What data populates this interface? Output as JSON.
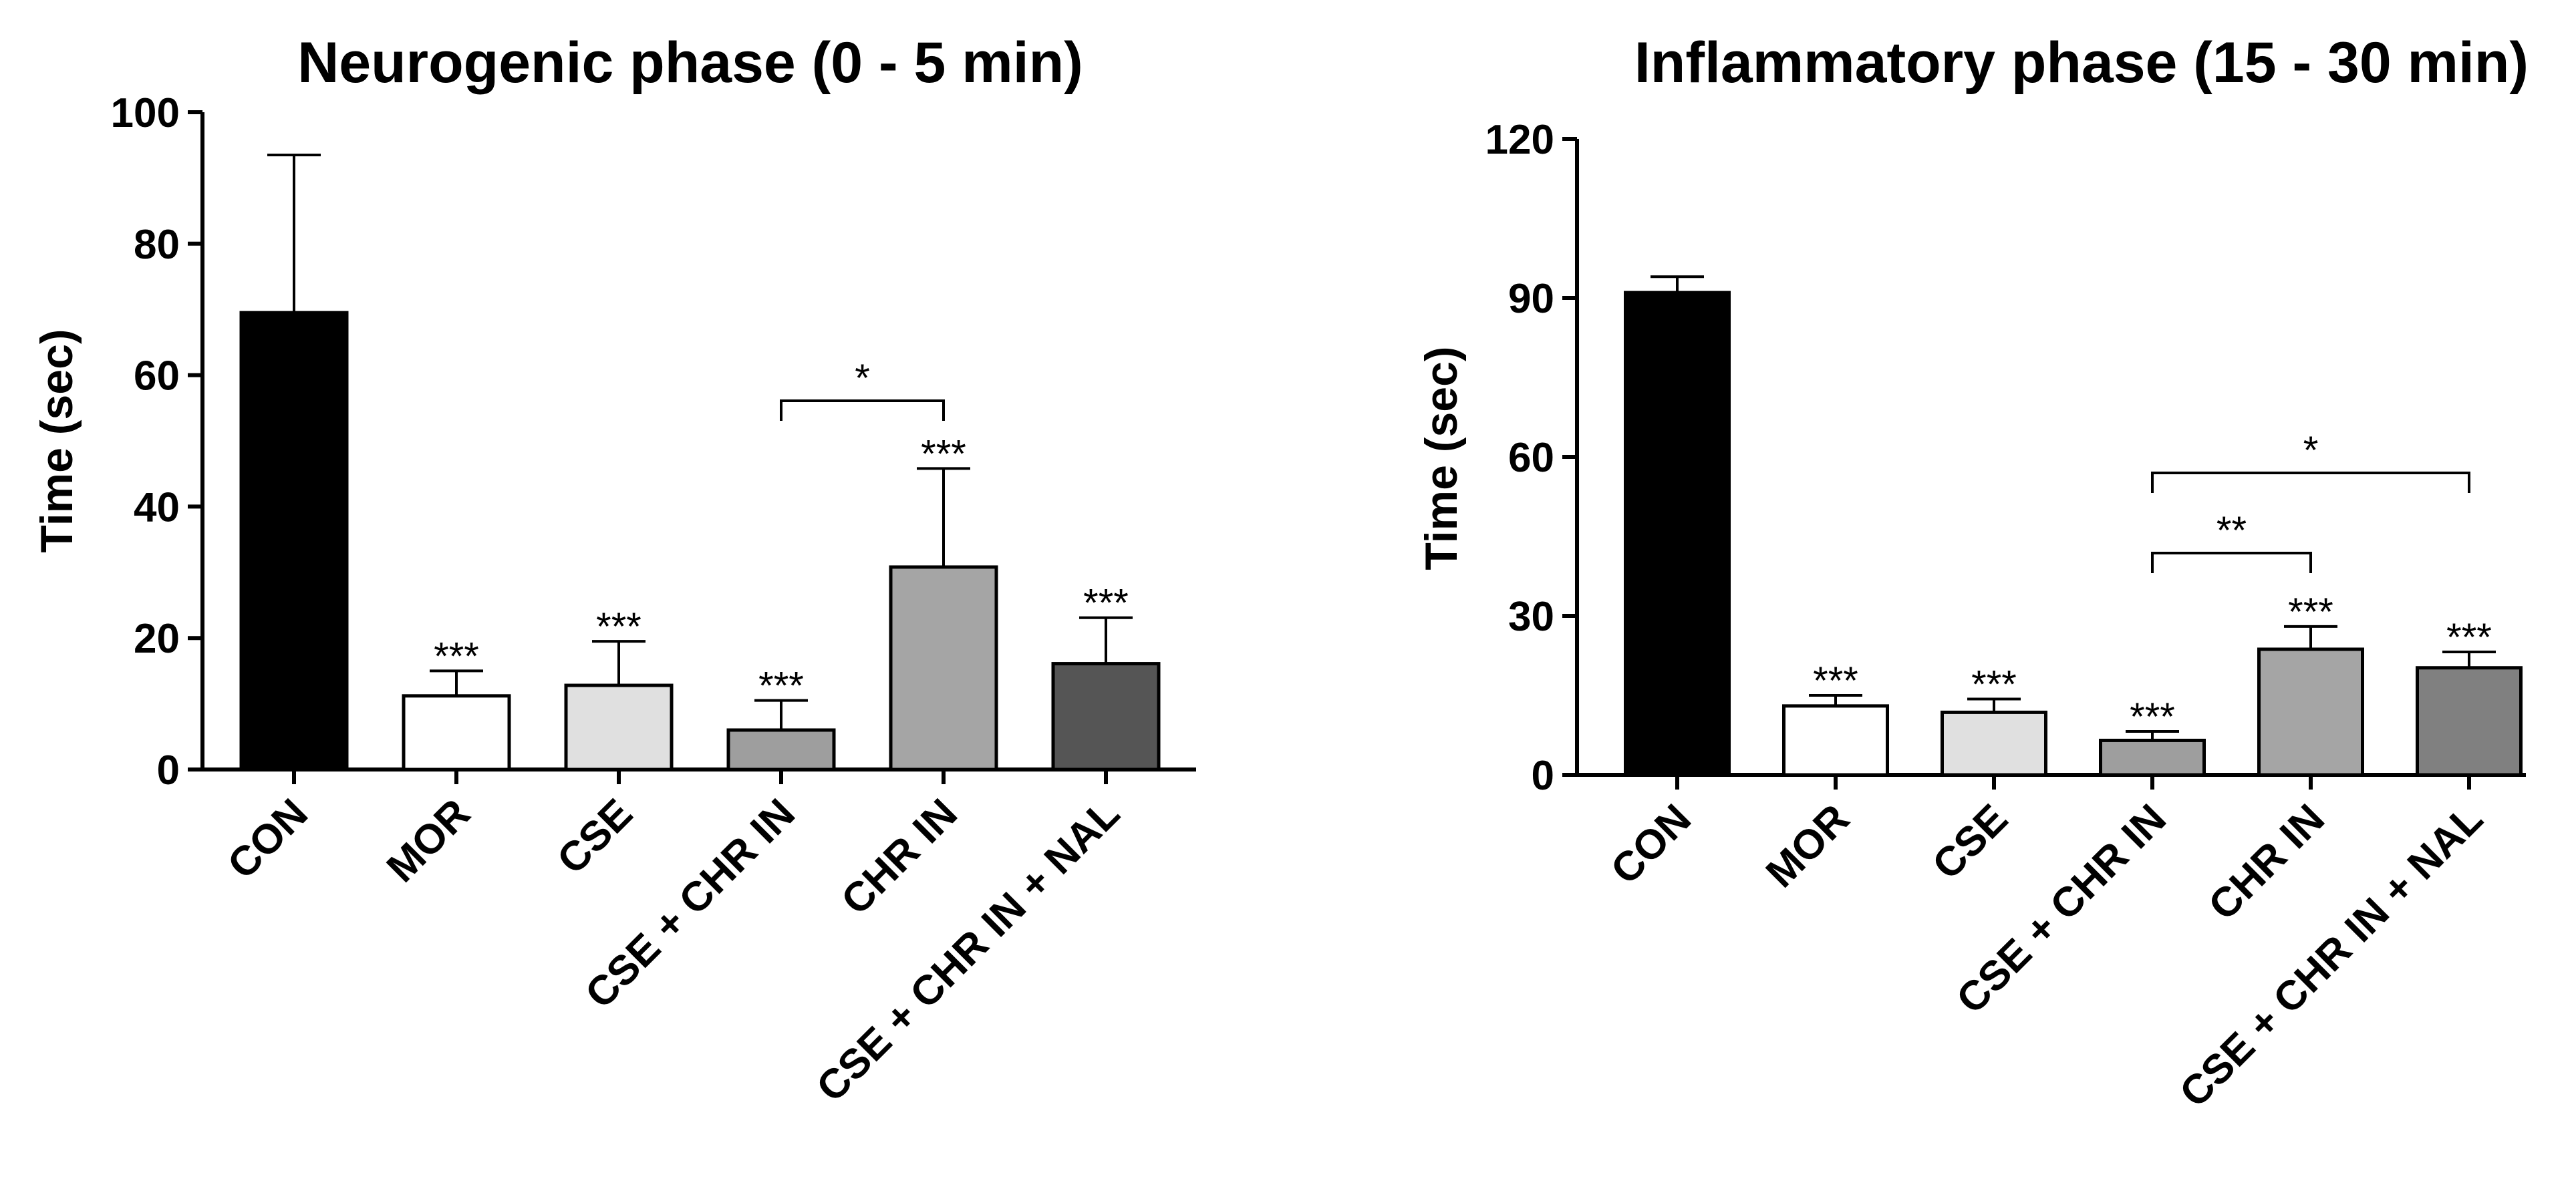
{
  "chart_data": [
    {
      "type": "bar",
      "title": "Neurogenic phase (0 - 5 min)",
      "ylabel": "Time  (sec)",
      "xlabel": "",
      "ylim": [
        0,
        100
      ],
      "yticks": [
        0,
        20,
        40,
        60,
        80,
        100
      ],
      "categories": [
        "CON",
        "MOR",
        "CSE",
        "CSE + CHR IN",
        "CHR IN",
        "CSE + CHR IN + NAL"
      ],
      "values": [
        69.5,
        11.2,
        12.8,
        6.0,
        30.8,
        16.1
      ],
      "errors": [
        24.0,
        3.8,
        6.7,
        4.5,
        15.0,
        7.0
      ],
      "colors": [
        "#000000",
        "#ffffff",
        "#e0e0e0",
        "#9e9e9e",
        "#a5a5a5",
        "#555555"
      ],
      "significance": [
        "",
        "***",
        "***",
        "***",
        "***",
        "***"
      ],
      "brackets": [
        {
          "from": 3,
          "to": 4,
          "label": "*"
        }
      ]
    },
    {
      "type": "bar",
      "title": "Inflammatory phase (15 - 30 min)",
      "ylabel": "Time  (sec)",
      "xlabel": "",
      "ylim": [
        0,
        120
      ],
      "yticks": [
        0,
        30,
        60,
        90,
        120
      ],
      "categories": [
        "CON",
        "MOR",
        "CSE",
        "CSE + CHR IN",
        "CHR IN",
        "CSE + CHR IN + NAL"
      ],
      "values": [
        91.0,
        13.0,
        11.8,
        6.5,
        23.7,
        20.2
      ],
      "errors": [
        3.0,
        2.0,
        2.5,
        1.7,
        4.3,
        3.0
      ],
      "colors": [
        "#000000",
        "#ffffff",
        "#e0e0e0",
        "#9e9e9e",
        "#a5a5a5",
        "#808080"
      ],
      "significance": [
        "",
        "***",
        "***",
        "***",
        "***",
        "***"
      ],
      "brackets": [
        {
          "from": 3,
          "to": 4,
          "label": "**"
        },
        {
          "from": 3,
          "to": 5,
          "label": "*"
        }
      ]
    }
  ]
}
